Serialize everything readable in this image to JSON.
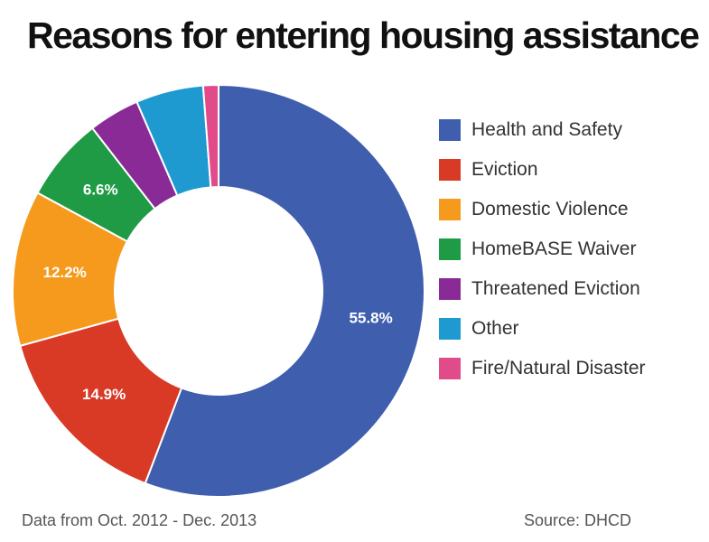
{
  "chart_data": {
    "type": "pie",
    "variant": "donut",
    "title": "Reasons for entering housing assistance",
    "categories": [
      "Health and Safety",
      "Eviction",
      "Domestic Violence",
      "HomeBASE Waiver",
      "Threatened Eviction",
      "Other",
      "Fire/Natural Disaster"
    ],
    "values": [
      55.8,
      14.9,
      12.2,
      6.6,
      4.0,
      5.3,
      1.2
    ],
    "value_labels": [
      "55.8%",
      "14.9%",
      "12.2%",
      "6.6%",
      "",
      "",
      ""
    ],
    "colors": [
      "#3f5fae",
      "#d93a26",
      "#f59a1c",
      "#1f9a45",
      "#8a2a96",
      "#1f9ad0",
      "#e24b8a"
    ],
    "legend_position": "right",
    "note": "Data from Oct. 2012 - Dec. 2013",
    "source": "Source: DHCD"
  }
}
